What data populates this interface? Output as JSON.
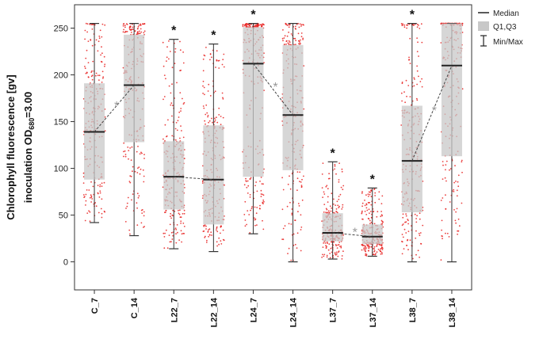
{
  "chart_data": {
    "type": "box",
    "ylabel_line1": "Chlorophyll fluorescence [gv]",
    "ylabel_line2_prefix": "inoculation OD",
    "ylabel_line2_sub": "680",
    "ylabel_line2_suffix": "=3.00",
    "ylim": [
      -30,
      275
    ],
    "yticks": [
      "0",
      "50",
      "100",
      "150",
      "200",
      "250"
    ],
    "ytick_values": [
      0,
      50,
      100,
      150,
      200,
      250
    ],
    "categories": [
      "C_7",
      "C_14",
      "L22_7",
      "L22_14",
      "L24_7",
      "L24_14",
      "L37_7",
      "L37_14",
      "L38_7",
      "L38_14"
    ],
    "boxes": [
      {
        "min": 42,
        "q1": 88,
        "median": 139,
        "q3": 191,
        "max": 255
      },
      {
        "min": 28,
        "q1": 128,
        "median": 189,
        "q3": 243,
        "max": 255
      },
      {
        "min": 14,
        "q1": 56,
        "median": 91,
        "q3": 129,
        "max": 238
      },
      {
        "min": 11,
        "q1": 40,
        "median": 88,
        "q3": 146,
        "max": 233
      },
      {
        "min": 30,
        "q1": 91,
        "median": 212,
        "q3": 251,
        "max": 255
      },
      {
        "min": 0,
        "q1": 98,
        "median": 157,
        "q3": 232,
        "max": 255
      },
      {
        "min": 3,
        "q1": 22,
        "median": 31,
        "q3": 52,
        "max": 107
      },
      {
        "min": 6,
        "q1": 19,
        "median": 27,
        "q3": 40,
        "max": 79
      },
      {
        "min": 0,
        "q1": 53,
        "median": 108,
        "q3": 167,
        "max": 255
      },
      {
        "min": 0,
        "q1": 113,
        "median": 210,
        "q3": 255,
        "max": 255
      }
    ],
    "median_connectors": [
      [
        0,
        1
      ],
      [
        2,
        3
      ],
      [
        4,
        5
      ],
      [
        6,
        7
      ],
      [
        8,
        9
      ]
    ],
    "significance_black": [
      "",
      "",
      "*",
      "*",
      "*",
      "",
      "*",
      "*",
      "*",
      ""
    ],
    "significance_grey_pairs": [
      "*",
      "",
      "*",
      "*",
      "*"
    ],
    "legend": {
      "median": "Median",
      "quartiles": "Q1,Q3",
      "minmax": "Min/Max"
    },
    "colors": {
      "box": "#c8c8c8",
      "points": "#e8201e",
      "median": "#222222",
      "whisker": "#333333",
      "connector": "#444444",
      "frame": "#333333"
    },
    "points_per_box": 220
  }
}
